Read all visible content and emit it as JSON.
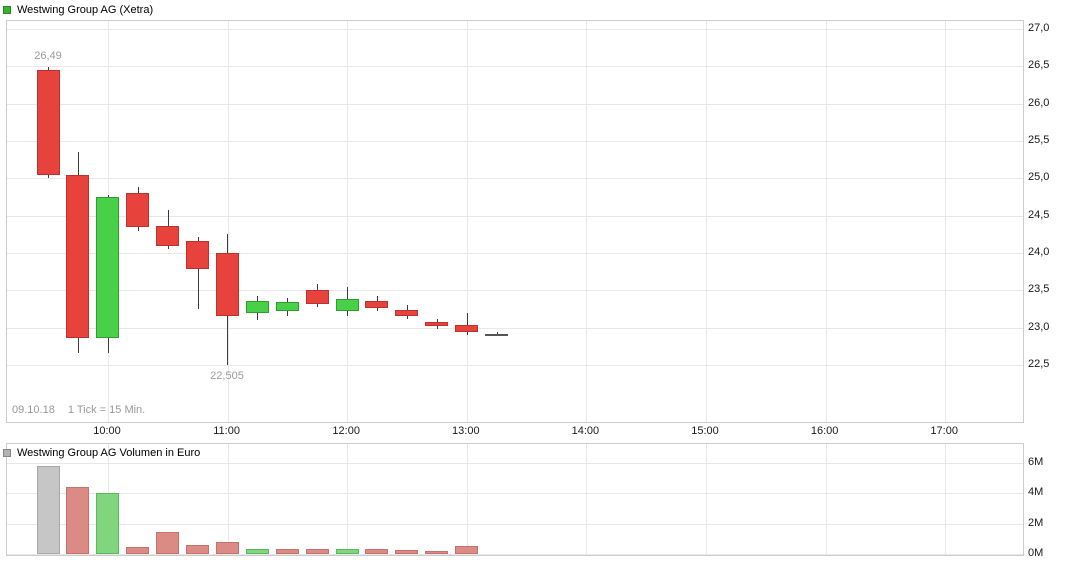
{
  "chart_data": [
    {
      "type": "candlestick",
      "title": "Westwing Group AG (Xetra)",
      "date": "09.10.18",
      "interval": "1 Tick = 15 Min.",
      "legend_position": "top-left",
      "grid": true,
      "ylim": [
        22.5,
        27.0
      ],
      "y_axis_side": "right",
      "x_tick_labels": [
        "10:00",
        "11:00",
        "12:00",
        "13:00",
        "14:00",
        "15:00",
        "16:00",
        "17:00"
      ],
      "y_ticks": [
        27.0,
        26.5,
        26.0,
        25.5,
        25.0,
        24.5,
        24.0,
        23.5,
        23.0,
        22.5
      ],
      "y_tick_labels": [
        "27,0",
        "26,5",
        "26,0",
        "25,5",
        "25,0",
        "24,5",
        "24,0",
        "23,5",
        "23,0",
        "22,5"
      ],
      "annotations": [
        {
          "text": "26,49",
          "type": "high",
          "time": "09:30",
          "value": 26.49
        },
        {
          "text": "22,505",
          "type": "low",
          "time": "11:00",
          "value": 22.505
        }
      ],
      "candles": [
        {
          "time": "09:30",
          "open": 26.45,
          "high": 26.49,
          "low": 25.0,
          "close": 25.05,
          "direction": "down"
        },
        {
          "time": "09:45",
          "open": 25.05,
          "high": 25.35,
          "low": 22.66,
          "close": 22.86,
          "direction": "down"
        },
        {
          "time": "10:00",
          "open": 22.86,
          "high": 24.78,
          "low": 22.66,
          "close": 24.75,
          "direction": "up"
        },
        {
          "time": "10:15",
          "open": 24.8,
          "high": 24.88,
          "low": 24.3,
          "close": 24.35,
          "direction": "down"
        },
        {
          "time": "10:30",
          "open": 24.36,
          "high": 24.58,
          "low": 24.05,
          "close": 24.1,
          "direction": "down"
        },
        {
          "time": "10:45",
          "open": 24.16,
          "high": 24.22,
          "low": 23.25,
          "close": 23.78,
          "direction": "down"
        },
        {
          "time": "11:00",
          "open": 24.0,
          "high": 24.25,
          "low": 22.505,
          "close": 23.15,
          "direction": "down"
        },
        {
          "time": "11:15",
          "open": 23.2,
          "high": 23.42,
          "low": 23.1,
          "close": 23.36,
          "direction": "up"
        },
        {
          "time": "11:30",
          "open": 23.22,
          "high": 23.4,
          "low": 23.16,
          "close": 23.35,
          "direction": "up"
        },
        {
          "time": "11:45",
          "open": 23.5,
          "high": 23.58,
          "low": 23.28,
          "close": 23.32,
          "direction": "down"
        },
        {
          "time": "12:00",
          "open": 23.22,
          "high": 23.55,
          "low": 23.15,
          "close": 23.38,
          "direction": "up"
        },
        {
          "time": "12:15",
          "open": 23.36,
          "high": 23.42,
          "low": 23.22,
          "close": 23.26,
          "direction": "down"
        },
        {
          "time": "12:30",
          "open": 23.24,
          "high": 23.3,
          "low": 23.12,
          "close": 23.16,
          "direction": "down"
        },
        {
          "time": "12:45",
          "open": 23.07,
          "high": 23.12,
          "low": 22.98,
          "close": 23.02,
          "direction": "down"
        },
        {
          "time": "13:00",
          "open": 23.03,
          "high": 23.2,
          "low": 22.9,
          "close": 22.94,
          "direction": "down"
        },
        {
          "time": "13:15",
          "open": 22.91,
          "high": 22.94,
          "low": 22.89,
          "close": 22.91,
          "direction": "flat"
        }
      ],
      "colors": {
        "up": "#48d148",
        "up_border": "#2f9e2f",
        "down": "#e8423c",
        "down_border": "#bb332e",
        "flat": "#555555",
        "wick": "#3c3c3c",
        "legend": "#35b42c"
      }
    },
    {
      "type": "bar",
      "title": "Westwing Group AG Volumen in Euro",
      "unit": "Euro (millions)",
      "grid": true,
      "ylim": [
        0,
        6
      ],
      "y_axis_side": "right",
      "y_ticks": [
        6,
        4,
        2,
        0
      ],
      "y_tick_labels": [
        "6M",
        "4M",
        "2M",
        "0M"
      ],
      "bars": [
        {
          "time": "09:30",
          "value_millions": 5.8,
          "color": "gray"
        },
        {
          "time": "09:45",
          "value_millions": 4.4,
          "color": "red"
        },
        {
          "time": "10:00",
          "value_millions": 4.0,
          "color": "green"
        },
        {
          "time": "10:15",
          "value_millions": 0.45,
          "color": "red"
        },
        {
          "time": "10:30",
          "value_millions": 1.45,
          "color": "red"
        },
        {
          "time": "10:45",
          "value_millions": 0.6,
          "color": "red"
        },
        {
          "time": "11:00",
          "value_millions": 0.8,
          "color": "red"
        },
        {
          "time": "11:15",
          "value_millions": 0.3,
          "color": "green"
        },
        {
          "time": "11:30",
          "value_millions": 0.3,
          "color": "red"
        },
        {
          "time": "11:45",
          "value_millions": 0.3,
          "color": "red"
        },
        {
          "time": "12:00",
          "value_millions": 0.3,
          "color": "green"
        },
        {
          "time": "12:15",
          "value_millions": 0.35,
          "color": "red"
        },
        {
          "time": "12:30",
          "value_millions": 0.25,
          "color": "red"
        },
        {
          "time": "12:45",
          "value_millions": 0.2,
          "color": "red"
        },
        {
          "time": "13:00",
          "value_millions": 0.55,
          "color": "red"
        },
        {
          "time": "13:15",
          "value_millions": 0.0,
          "color": "red"
        }
      ],
      "colors": {
        "gray": "#c6c6c6",
        "gray_border": "#a6a6a6",
        "red": "#db8b84",
        "red_border": "#c4726b",
        "green": "#7fd67f",
        "green_border": "#5cb85c",
        "legend": "#b3b3b3"
      }
    }
  ]
}
